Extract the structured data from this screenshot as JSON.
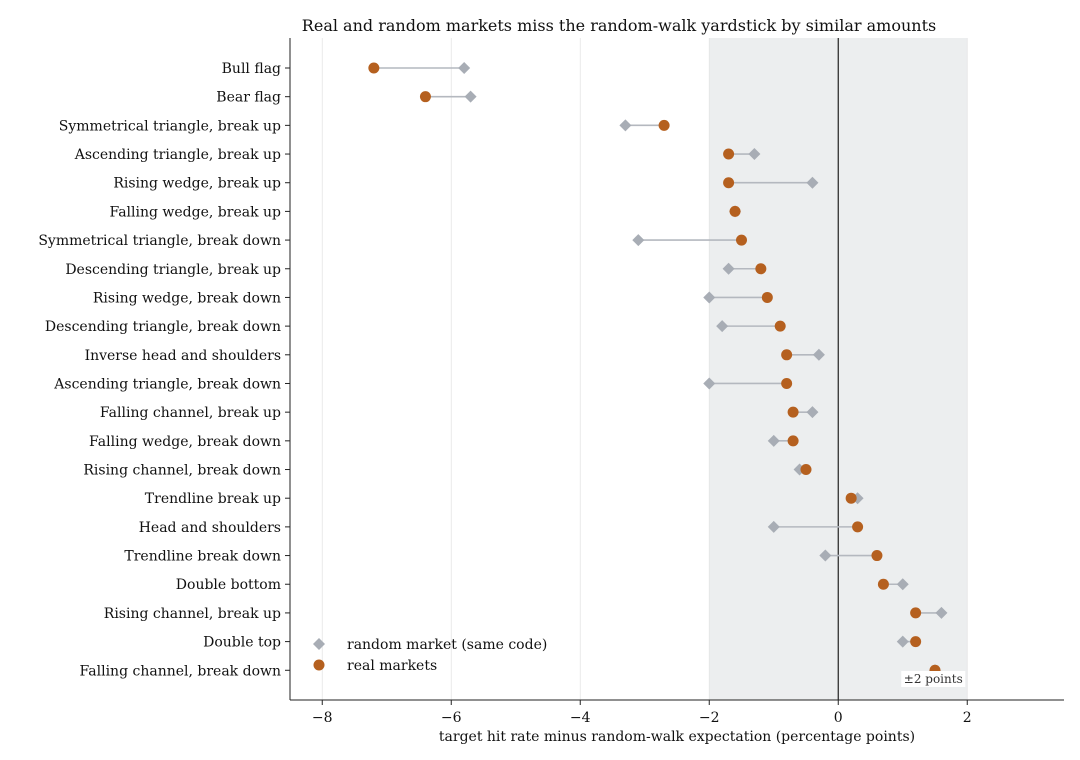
{
  "chart_data": {
    "type": "scatter",
    "title": "Real and random markets miss the random-walk yardstick by similar amounts",
    "xlabel": "target hit rate minus random-walk expectation (percentage points)",
    "ylabel": "",
    "xlim": [
      -8.5,
      3.5
    ],
    "xticks": [
      -8,
      -6,
      -4,
      -2,
      0,
      2
    ],
    "xtick_labels": [
      "−8",
      "−6",
      "−4",
      "−2",
      "0",
      "2"
    ],
    "grid": "vertical",
    "legend_position": "lower-left",
    "band": {
      "from": -2,
      "to": 2,
      "label": "±2 points"
    },
    "categories": [
      "Bull flag",
      "Bear flag",
      "Symmetrical triangle, break up",
      "Ascending triangle, break up",
      "Rising wedge, break up",
      "Falling wedge, break up",
      "Symmetrical triangle, break down",
      "Descending triangle, break up",
      "Rising wedge, break down",
      "Descending triangle, break down",
      "Inverse head and shoulders",
      "Ascending triangle, break down",
      "Falling channel, break up",
      "Falling wedge, break down",
      "Rising channel, break down",
      "Trendline break up",
      "Head and shoulders",
      "Trendline break down",
      "Double bottom",
      "Rising channel, break up",
      "Double top",
      "Falling channel, break down"
    ],
    "series": [
      {
        "name": "random market (same code)",
        "marker": "diamond",
        "color": "#a8adb5",
        "values": [
          -5.8,
          -5.7,
          -3.3,
          -1.3,
          -0.4,
          -1.6,
          -3.1,
          -1.7,
          -2.0,
          -1.8,
          -0.3,
          -2.0,
          -0.4,
          -1.0,
          -0.6,
          0.3,
          -1.0,
          -0.2,
          1.0,
          1.6,
          1.0,
          1.5
        ]
      },
      {
        "name": "real markets",
        "marker": "circle",
        "color": "#b5601f",
        "values": [
          -7.2,
          -6.4,
          -2.7,
          -1.7,
          -1.7,
          -1.6,
          -1.5,
          -1.2,
          -1.1,
          -0.9,
          -0.8,
          -0.8,
          -0.7,
          -0.7,
          -0.5,
          0.2,
          0.3,
          0.6,
          0.7,
          1.2,
          1.2,
          1.5
        ]
      }
    ]
  }
}
